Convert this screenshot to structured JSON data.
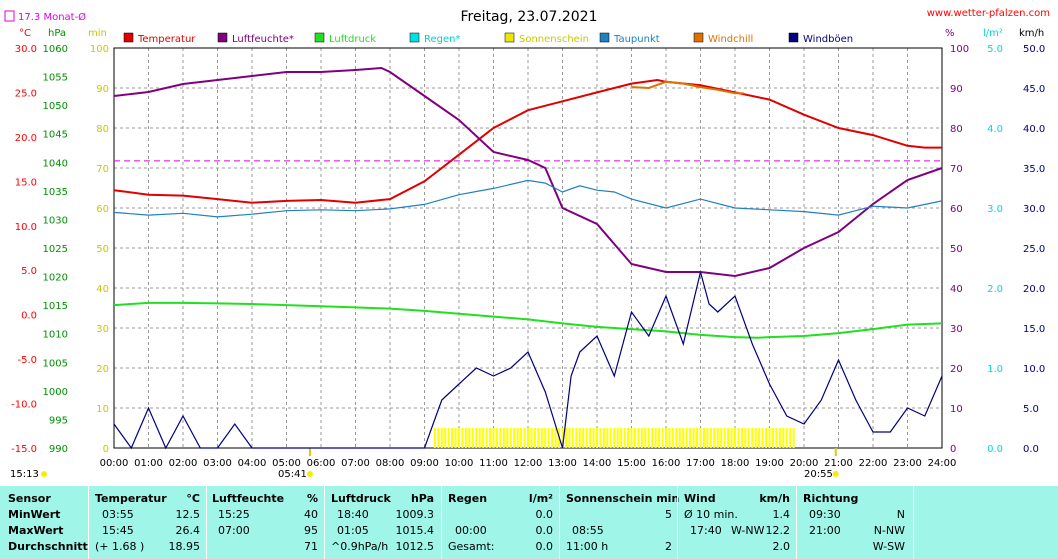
{
  "chart_data": {
    "type": "line",
    "title": "Freitag, 23.07.2021",
    "source": "www.wetter-pfalzen.com",
    "month_avg_label": "17.3 Monat-Ø",
    "month_avg_value": 17.3,
    "x_ticks": [
      "00:00",
      "01:00",
      "02:00",
      "03:00",
      "04:00",
      "05:00",
      "06:00",
      "07:00",
      "08:00",
      "09:00",
      "10:00",
      "11:00",
      "12:00",
      "13:00",
      "14:00",
      "15:00",
      "16:00",
      "17:00",
      "18:00",
      "19:00",
      "20:00",
      "21:00",
      "22:00",
      "23:00",
      "24:00"
    ],
    "sunrise": "05:41",
    "sunset": "20:55",
    "sunrise_h": 5.68,
    "sunset_h": 20.92,
    "timestamp": "15:13",
    "axes": {
      "temp": {
        "unit": "°C",
        "range": [
          -15,
          30
        ],
        "ticks": [
          "30.0",
          "25.0",
          "20.0",
          "15.0",
          "10.0",
          "5.0",
          "0.0",
          "-5.0",
          "-10.0",
          "-15.0"
        ]
      },
      "pressure": {
        "unit": "hPa",
        "range": [
          990,
          1060
        ],
        "ticks": [
          "1060",
          "1055",
          "1050",
          "1045",
          "1040",
          "1035",
          "1030",
          "1025",
          "1020",
          "1015",
          "1010",
          "1005",
          "1000",
          "995",
          "990"
        ]
      },
      "sun": {
        "unit": "min",
        "range": [
          0,
          100
        ],
        "ticks": [
          "100",
          "90",
          "80",
          "70",
          "60",
          "50",
          "40",
          "30",
          "20",
          "10",
          "0"
        ]
      },
      "humidity": {
        "unit": "%",
        "range": [
          0,
          100
        ],
        "ticks": [
          "100",
          "90",
          "80",
          "70",
          "60",
          "50",
          "40",
          "30",
          "20",
          "10",
          "0"
        ]
      },
      "rain": {
        "unit": "l/m²",
        "range": [
          0,
          5
        ],
        "ticks": [
          "5.0",
          "4.0",
          "3.0",
          "2.0",
          "1.0",
          "0.0"
        ]
      },
      "wind": {
        "unit": "km/h",
        "range": [
          0,
          50
        ],
        "ticks": [
          "50.0",
          "45.0",
          "40.0",
          "35.0",
          "30.0",
          "25.0",
          "20.0",
          "15.0",
          "10.0",
          "5.0",
          "0.0"
        ]
      }
    },
    "legend": [
      {
        "name": "Temperatur",
        "color": "#e00000"
      },
      {
        "name": "Luftfeuchte*",
        "color": "#800080"
      },
      {
        "name": "Luftdruck",
        "color": "#20e020"
      },
      {
        "name": "Regen*",
        "color": "#00e0e0"
      },
      {
        "name": "Sonnenschein",
        "color": "#e8e800"
      },
      {
        "name": "Taupunkt",
        "color": "#2080c0"
      },
      {
        "name": "Windchill",
        "color": "#e07000"
      },
      {
        "name": "Windböen",
        "color": "#000080"
      }
    ],
    "series": [
      {
        "name": "Temperatur",
        "unit": "°C",
        "x": [
          0,
          1,
          2,
          3,
          4,
          5,
          6,
          7,
          8,
          9,
          10,
          11,
          12,
          13,
          14,
          15,
          15.75,
          16,
          17,
          18,
          19,
          20,
          21,
          22,
          23,
          23.5,
          24
        ],
        "values": [
          14.0,
          13.5,
          13.4,
          13.0,
          12.6,
          12.8,
          12.9,
          12.6,
          13.0,
          15.0,
          18.0,
          21.0,
          23.0,
          24.0,
          25.0,
          26.0,
          26.4,
          26.2,
          25.8,
          25.0,
          24.2,
          22.5,
          21.0,
          20.2,
          19.0,
          18.8,
          18.8
        ]
      },
      {
        "name": "Luftfeuchte*",
        "unit": "%",
        "x": [
          0,
          1,
          2,
          3,
          4,
          5,
          6,
          7,
          7.75,
          8,
          9,
          10,
          11,
          12,
          12.5,
          13,
          14,
          15,
          16,
          17,
          18,
          19,
          20,
          21,
          22,
          23,
          24
        ],
        "values": [
          88,
          89,
          91,
          92,
          93,
          94,
          94,
          94.5,
          95,
          94,
          88,
          82,
          74,
          72,
          70,
          60,
          56,
          46,
          44,
          44,
          43,
          45,
          50,
          54,
          61,
          67,
          70
        ]
      },
      {
        "name": "Luftdruck",
        "unit": "hPa",
        "x": [
          0,
          1,
          2,
          3,
          4,
          5,
          6,
          7,
          8,
          9,
          10,
          11,
          12,
          13,
          14,
          15,
          16,
          17,
          18,
          18.67,
          19,
          20,
          21,
          22,
          23,
          24
        ],
        "values": [
          1015.0,
          1015.4,
          1015.4,
          1015.3,
          1015.2,
          1015.0,
          1014.8,
          1014.6,
          1014.4,
          1014.0,
          1013.5,
          1013.0,
          1012.5,
          1011.8,
          1011.2,
          1010.8,
          1010.4,
          1009.8,
          1009.4,
          1009.3,
          1009.4,
          1009.6,
          1010.1,
          1010.8,
          1011.6,
          1011.8
        ]
      },
      {
        "name": "Taupunkt",
        "unit": "°C",
        "x": [
          0,
          1,
          2,
          3,
          4,
          5,
          6,
          7,
          8,
          9,
          10,
          11,
          12,
          12.5,
          13,
          13.5,
          14,
          14.5,
          15,
          16,
          17,
          18,
          19,
          20,
          21,
          22,
          23,
          24
        ],
        "values": [
          11.5,
          11.2,
          11.4,
          11.0,
          11.3,
          11.7,
          11.8,
          11.7,
          11.9,
          12.4,
          13.5,
          14.2,
          15.1,
          14.8,
          13.8,
          14.5,
          14.0,
          13.8,
          13.0,
          12.0,
          13.0,
          12.0,
          11.8,
          11.6,
          11.2,
          12.2,
          12.0,
          12.8
        ]
      },
      {
        "name": "Windchill",
        "unit": "°C",
        "x": [
          15,
          15.5,
          16,
          16.5,
          17,
          17.5,
          18,
          18.25
        ],
        "values": [
          25.6,
          25.5,
          26.2,
          26.0,
          25.6,
          25.3,
          24.9,
          24.9
        ]
      },
      {
        "name": "Windböen",
        "unit": "km/h",
        "x": [
          0,
          0.5,
          1,
          1.5,
          2,
          2.5,
          3,
          3.5,
          4,
          4.5,
          5,
          5.5,
          6,
          6.5,
          7,
          7.5,
          8,
          8.5,
          9,
          9.25,
          9.5,
          10,
          10.5,
          11,
          11.5,
          12,
          12.5,
          13,
          13.25,
          13.5,
          14,
          14.5,
          15,
          15.5,
          16,
          16.5,
          17,
          17.25,
          17.5,
          18,
          18.5,
          19,
          19.5,
          20,
          20.5,
          21,
          21.5,
          22,
          22.5,
          23,
          23.5,
          24
        ],
        "values": [
          3,
          0,
          5,
          0,
          4,
          0,
          0,
          3,
          0,
          0,
          0,
          0,
          0,
          0,
          0,
          0,
          0,
          0,
          0,
          3,
          6,
          8,
          10,
          9,
          10,
          12,
          7,
          0,
          9,
          12,
          14,
          9,
          17,
          14,
          19,
          13,
          22,
          18,
          17,
          19,
          13,
          8,
          4,
          3,
          6,
          11,
          6,
          2,
          2,
          5,
          4,
          9
        ]
      }
    ],
    "sunshine_bars": {
      "unit": "min",
      "x_start": 9.3,
      "x_end": 19.8,
      "value": 5
    },
    "reference_line": {
      "label": "17.3 Monat-Ø",
      "value": 17.3,
      "unit": "°C"
    }
  },
  "stats": {
    "row_labels": [
      "Sensor",
      "MinWert",
      "MaxWert",
      "Durchschnitt"
    ],
    "temperatur": {
      "header": "Temperatur",
      "unit": "°C",
      "min_time": "03:55",
      "min": "12.5",
      "max_time": "15:45",
      "max": "26.4",
      "avg_note": "(+ 1.68 )",
      "avg": "18.95"
    },
    "luftfeuchte": {
      "header": "Luftfeuchte",
      "unit": "%",
      "min_time": "15:25",
      "min": "40",
      "max_time": "07:00",
      "max": "95",
      "avg": "71"
    },
    "luftdruck": {
      "header": "Luftdruck",
      "unit": "hPa",
      "min_time": "18:40",
      "min": "1009.3",
      "max_time": "01:05",
      "max": "1015.4",
      "avg_note": "^0.9hPa/h",
      "avg": "1012.5"
    },
    "regen": {
      "header": "Regen",
      "unit": "l/m²",
      "min": "0.0",
      "max_time": "00:00",
      "max": "0.0",
      "avg_note": "Gesamt:",
      "avg": "0.0"
    },
    "sonne": {
      "header": "Sonnenschein min",
      "min": "5",
      "max_time": "08:55",
      "max": "",
      "avg_note": "11:00 h",
      "avg": "2"
    },
    "wind": {
      "header": "Wind",
      "unit": "km/h",
      "min_time": "Ø 10 min.",
      "min": "1.4",
      "max_time": "17:40",
      "max_dir": "W-NW",
      "max": "12.2",
      "avg": "2.0"
    },
    "richtung": {
      "header": "Richtung",
      "min_time": "09:30",
      "min": "N",
      "max_time": "21:00",
      "max": "N-NW",
      "avg": "W-SW"
    }
  }
}
